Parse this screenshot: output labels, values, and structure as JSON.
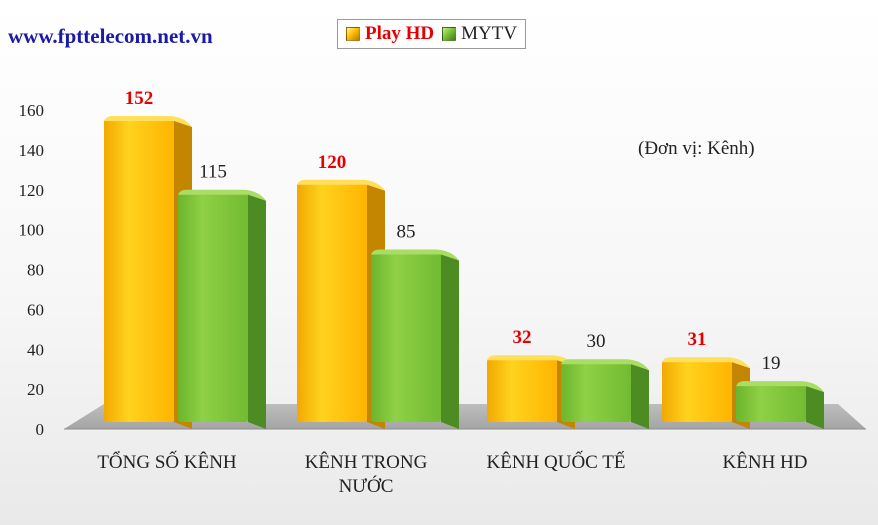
{
  "site_label": "www.fpttelecom.net.vn",
  "unit_note": "(Đơn vị: Kênh)",
  "colors": {
    "play_hd": "#ffc000",
    "mytv": "#7cc33a",
    "play_label": "#e60000",
    "site": "#1a1aa8"
  },
  "chart_data": {
    "type": "bar",
    "title": "",
    "xlabel": "",
    "ylabel": "",
    "categories": [
      [
        "TỔNG SỐ KÊNH"
      ],
      [
        "KÊNH TRONG",
        "NƯỚC"
      ],
      [
        "KÊNH QUỐC TẾ"
      ],
      [
        "KÊNH HD"
      ]
    ],
    "series": [
      {
        "name": "Play HD",
        "values": [
          152,
          120,
          32,
          31
        ]
      },
      {
        "name": "MYTV",
        "values": [
          115,
          85,
          30,
          19
        ]
      }
    ],
    "ylim": [
      0,
      160
    ],
    "yticks": [
      "0",
      "20",
      "40",
      "60",
      "80",
      "100",
      "120",
      "140",
      "160"
    ],
    "legend_position": "top-center",
    "grid": false
  }
}
